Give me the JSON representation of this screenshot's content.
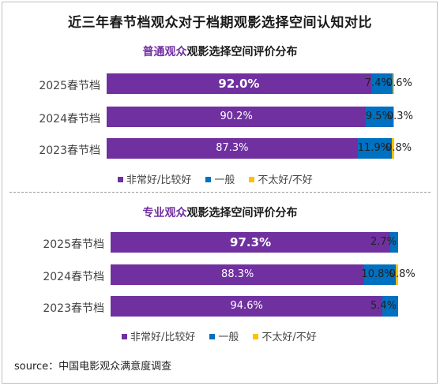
{
  "title": "近三年春节档观众对于档期观影选择空间认知对比",
  "colors": {
    "very_good": "#7030a0",
    "average": "#0070c0",
    "not_good": "#ffc000"
  },
  "chart_data": [
    {
      "type": "bar",
      "stacked": true,
      "orientation": "horizontal",
      "title_highlight": "普通观众",
      "title_rest": "观影选择空间评价分布",
      "categories": [
        "2025春节档",
        "2024春节档",
        "2023春节档"
      ],
      "xlim": [
        0,
        100
      ],
      "series": [
        {
          "name": "非常好/比较好",
          "values": [
            92.0,
            90.2,
            87.3
          ],
          "labels": [
            "92.0%",
            "90.2%",
            "87.3%"
          ]
        },
        {
          "name": "一般",
          "values": [
            7.4,
            9.5,
            11.9
          ],
          "labels": [
            "7.4%",
            "9.5%",
            "11.9%"
          ]
        },
        {
          "name": "不太好/不好",
          "values": [
            0.6,
            0.3,
            0.8
          ],
          "labels": [
            "0.6%",
            "0.3%",
            "0.8%"
          ]
        }
      ]
    },
    {
      "type": "bar",
      "stacked": true,
      "orientation": "horizontal",
      "title_highlight": "专业观众",
      "title_rest": "观影选择空间评价分布",
      "categories": [
        "2025春节档",
        "2024春节档",
        "2023春节档"
      ],
      "xlim": [
        0,
        100
      ],
      "series": [
        {
          "name": "非常好/比较好",
          "values": [
            97.3,
            88.3,
            94.6
          ],
          "labels": [
            "97.3%",
            "88.3%",
            "94.6%"
          ]
        },
        {
          "name": "一般",
          "values": [
            2.7,
            10.8,
            5.4
          ],
          "labels": [
            "2.7%",
            "10.8%",
            "5.4%"
          ]
        },
        {
          "name": "不太好/不好",
          "values": [
            0.0,
            0.8,
            0.0
          ],
          "labels": [
            "",
            "0.8%",
            ""
          ]
        }
      ]
    }
  ],
  "source": "source：中国电影观众满意度调查"
}
